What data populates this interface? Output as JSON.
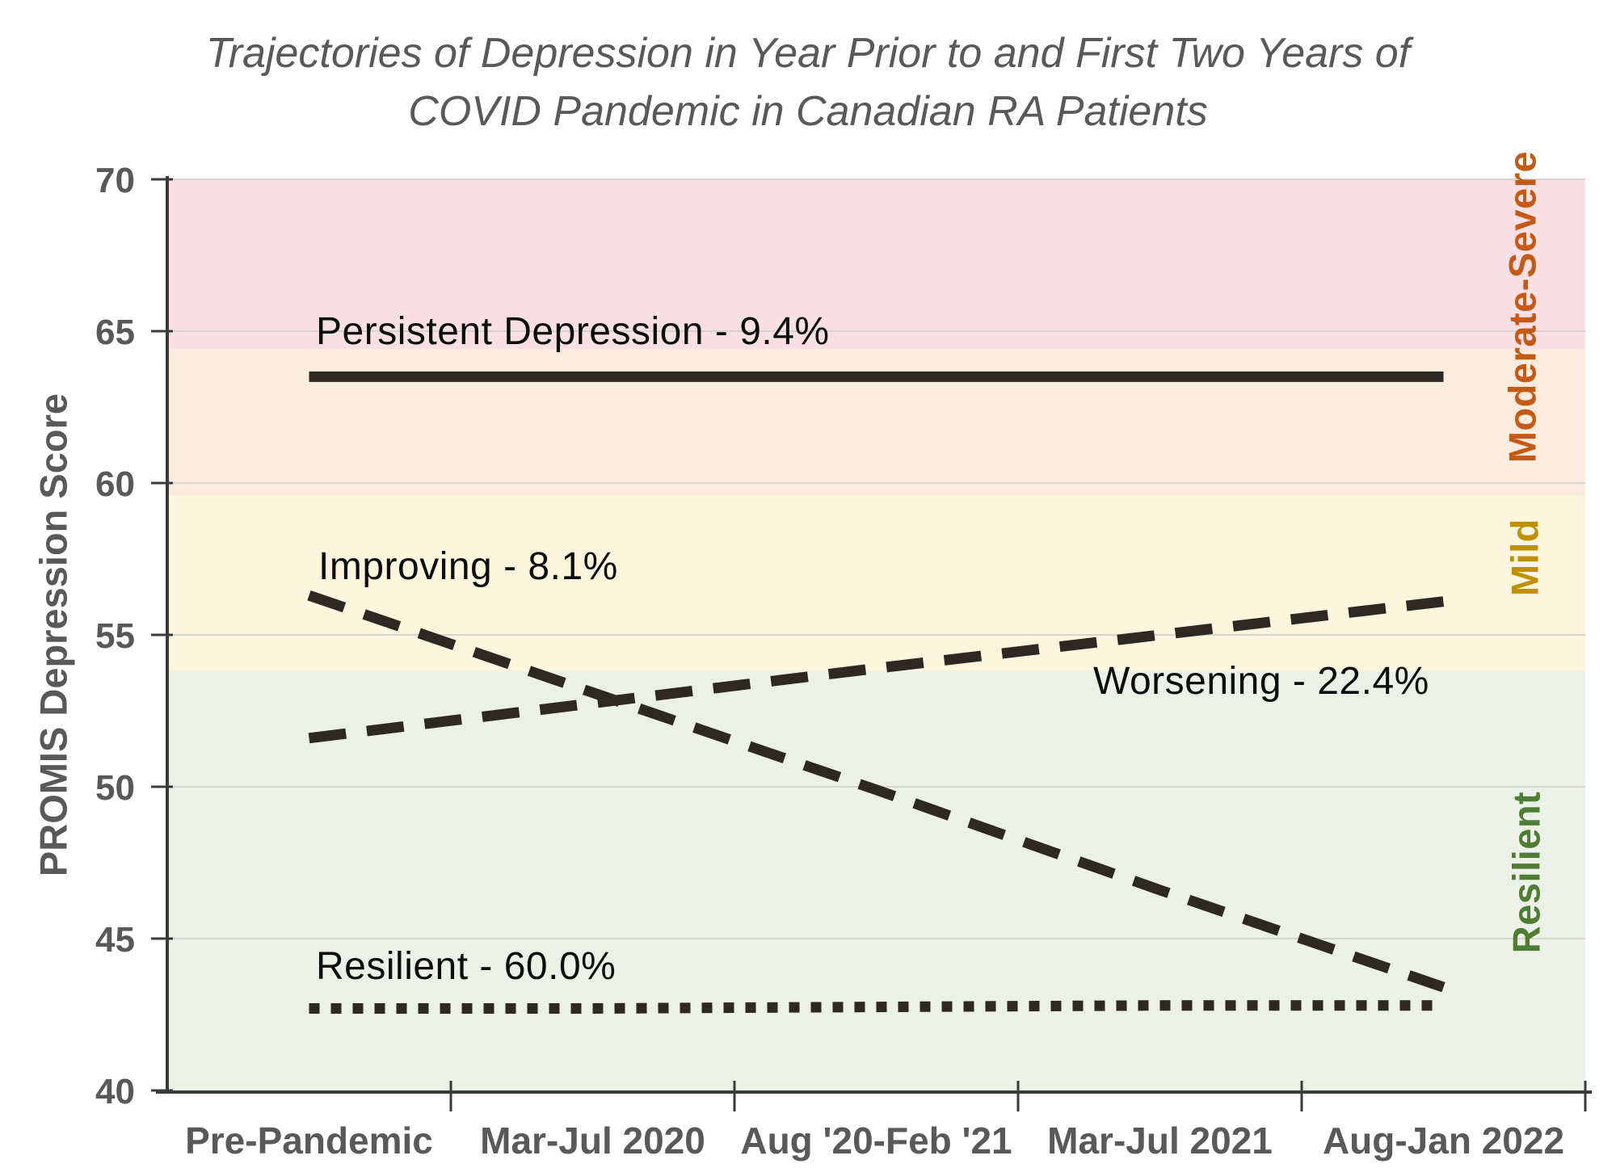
{
  "title": {
    "line1": "Trajectories of Depression in Year Prior to and First Two Years of",
    "line2": "COVID Pandemic in Canadian RA Patients"
  },
  "chart_data": {
    "type": "line",
    "title": "Trajectories of Depression in Year Prior to and First Two Years of COVID Pandemic in Canadian RA Patients",
    "xlabel": "",
    "ylabel": "PROMIS Depression Score",
    "ylim": [
      40,
      70
    ],
    "yticks": [
      40,
      45,
      50,
      55,
      60,
      65,
      70
    ],
    "grid": true,
    "legend_position": "inline-labels",
    "categories": [
      "Pre-Pandemic",
      "Mar-Jul 2020",
      "Aug '20-Feb '21",
      "Mar-Jul 2021",
      "Aug-Jan 2022"
    ],
    "line_color": "#2e2822",
    "series": [
      {
        "name": "Persistent Depression",
        "label": "Persistent Depression - 9.4%",
        "percent": 9.4,
        "linestyle": "solid",
        "values": [
          63.5,
          63.5,
          63.5,
          63.5,
          63.5
        ]
      },
      {
        "name": "Improving",
        "label": "Improving - 8.1%",
        "percent": 8.1,
        "linestyle": "dashed",
        "values": [
          56.3,
          53.1,
          49.9,
          46.6,
          43.4
        ]
      },
      {
        "name": "Worsening",
        "label": "Worsening - 22.4%",
        "percent": 22.4,
        "linestyle": "dashed",
        "values": [
          51.6,
          52.75,
          53.9,
          55.0,
          56.1
        ]
      },
      {
        "name": "Resilient",
        "label": "Resilient - 60.0%",
        "percent": 60.0,
        "linestyle": "dotted",
        "values": [
          42.7,
          42.7,
          42.75,
          42.8,
          42.8
        ]
      }
    ],
    "background_bands": [
      {
        "name": "moderate-severe-upper",
        "from": 64.4,
        "to": 70,
        "color": "#f9e0e4"
      },
      {
        "name": "moderate-severe-lower",
        "from": 59.6,
        "to": 64.4,
        "color": "#fcecdd"
      },
      {
        "name": "mild",
        "from": 53.8,
        "to": 59.6,
        "color": "#fdf5dd"
      },
      {
        "name": "resilient",
        "from": 40,
        "to": 53.8,
        "color": "#ecf1e8"
      }
    ],
    "band_labels": [
      {
        "text": "Moderate-Severe",
        "color": "#c45a15",
        "covers": [
          59.6,
          70
        ]
      },
      {
        "text": "Mild",
        "color": "#bf9000",
        "covers": [
          53.8,
          59.6
        ]
      },
      {
        "text": "Resilient",
        "color": "#4f7d33",
        "covers": [
          40,
          53.8
        ]
      }
    ]
  }
}
